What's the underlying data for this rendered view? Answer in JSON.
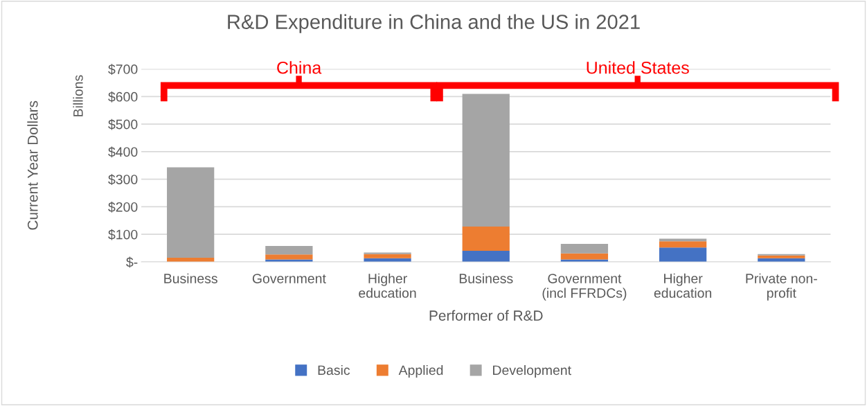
{
  "chart_data": {
    "type": "bar",
    "stacked": true,
    "title": "R&D Expenditure in China and the US in 2021",
    "xlabel": "Performer of R&D",
    "ylabel": "Current Year Dollars",
    "annotations": [
      "China",
      "United States",
      "Billions"
    ],
    "categories": [
      "Business",
      "Government",
      "Higher\neducation",
      "Business",
      "Government\n(incl FFRDCs)",
      "Higher\neducation",
      "Private non-\nprofit"
    ],
    "series": [
      {
        "name": "Basic",
        "color": "#4472c4",
        "values": [
          null,
          9,
          13,
          40,
          9,
          52,
          13
        ]
      },
      {
        "name": "Applied",
        "color": "#ed7d31",
        "values": [
          15,
          18,
          15,
          88,
          22,
          23,
          10
        ]
      },
      {
        "name": "Development",
        "color": "#a5a5a5",
        "values": [
          328,
          31,
          6,
          482,
          34,
          9,
          5
        ]
      }
    ],
    "ylim": [
      0,
      700
    ],
    "yticks": [
      {
        "value": 0,
        "label": "$-"
      },
      {
        "value": 100,
        "label": "$100"
      },
      {
        "value": 200,
        "label": "$200"
      },
      {
        "value": 300,
        "label": "$300"
      },
      {
        "value": 400,
        "label": "$400"
      },
      {
        "value": 500,
        "label": "$500"
      },
      {
        "value": 600,
        "label": "$600"
      },
      {
        "value": 700,
        "label": "$700"
      }
    ],
    "grid": "y",
    "legend": "bottom"
  }
}
